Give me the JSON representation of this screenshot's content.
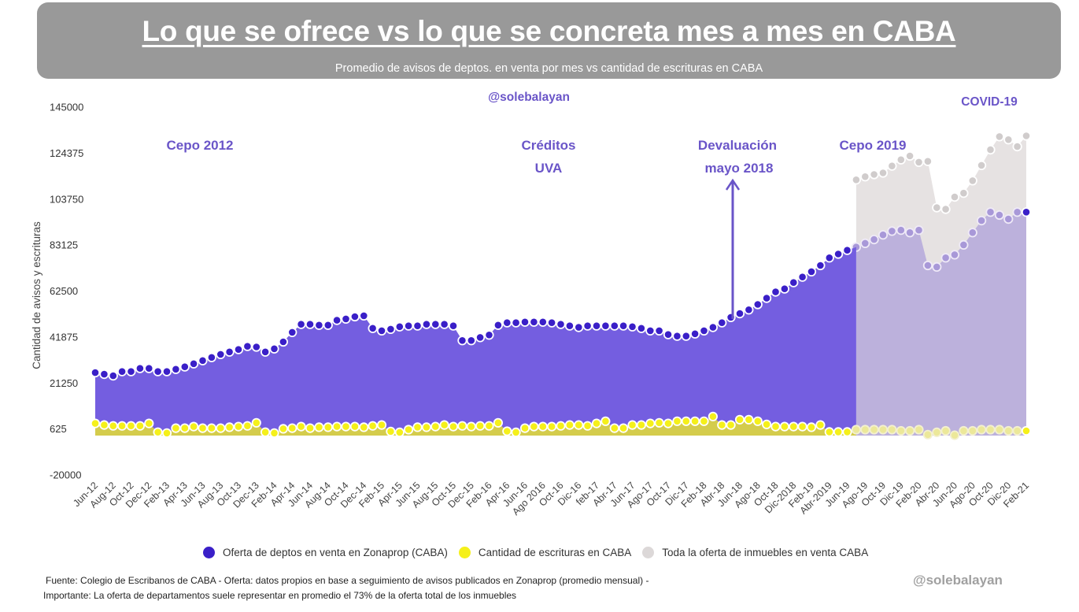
{
  "header": {
    "title": "Lo que se ofrece vs lo que se concreta mes a mes en CABA",
    "subtitle": "Promedio de avisos de deptos. en venta por mes vs cantidad de escrituras en CABA"
  },
  "watermark_top": "@solebalayan",
  "signature": "@solebalayan",
  "annotations": {
    "cepo2012": "Cepo 2012",
    "creditos_line1": "Créditos",
    "creditos_line2": "UVA",
    "devaluacion_line1": "Devaluación",
    "devaluacion_line2": "mayo 2018",
    "cepo2019": "Cepo 2019",
    "covid": "COVID-19"
  },
  "legend": [
    {
      "label": "Oferta de deptos en venta en Zonaprop (CABA)",
      "color": "#3a1fc8"
    },
    {
      "label": "Cantidad de escrituras en CABA",
      "color": "#f5f01a"
    },
    {
      "label": "Toda la oferta de inmuebles en venta CABA",
      "color": "#dcd8d8"
    }
  ],
  "footer": {
    "line1": "Fuente: Colegio de  Escribanos de CABA  -  Oferta: datos propios en base a seguimiento de avisos publicados en Zonaprop (promedio mensual) -",
    "line2": "Importante: La oferta de departamentos suele representar en promedio el 73% de la oferta total de los inmuebles"
  },
  "colors": {
    "header_bg": "#999999",
    "dept_fill": "#745ee0",
    "dept_dot": "#3a1fc8",
    "escr_fill": "#d4cc4c",
    "escr_dot": "#f5f01a",
    "total_fill": "#e6e2e2",
    "total_dot": "#d0cccc",
    "dept_overlay_fill": "#bcb1dc",
    "dept_overlay_dot": "#a898d8",
    "annotation": "#6a55c8"
  },
  "chart_data": {
    "type": "area",
    "title": "Lo que se ofrece vs lo que se concreta mes a mes en CABA",
    "subtitle": "Promedio de avisos de deptos. en venta por mes vs cantidad de escrituras en CABA",
    "xlabel": "",
    "ylabel": "Cantidad de avisos y escrituras",
    "ylim": [
      -20000,
      145000
    ],
    "yticks": [
      145000,
      124375,
      103750,
      83125,
      62500,
      41875,
      21250,
      625,
      -20000
    ],
    "ytick_labels": [
      "145000",
      "124375",
      "103750",
      "83125",
      "62500",
      "41875",
      "21250",
      "625",
      "-20000"
    ],
    "grid": false,
    "legend_position": "bottom",
    "x_tick_labels": [
      "Jun-12",
      "Aug-12",
      "Oct-12",
      "Dec-12",
      "Feb-13",
      "Apr-13",
      "Jun-13",
      "Aug-13",
      "Oct-13",
      "Dec-13",
      "Feb-14",
      "Apr-14",
      "Jun-14",
      "Aug-14",
      "Oct-14",
      "Dec-14",
      "Feb-15",
      "Apr-15",
      "Jun-15",
      "Aug-15",
      "Oct-15",
      "Dec-15",
      "Feb-16",
      "Apr-16",
      "Jun-16",
      "Ago 2016",
      "Oct-16",
      "Dic-16",
      "feb-17",
      "Abr-17",
      "Jun-17",
      "Ago-17",
      "Oct-17",
      "Dic-17",
      "Feb-18",
      "Abr-18",
      "Jun-18",
      "Ago-18",
      "Oct-18",
      "Dic-2018",
      "Feb-19",
      "Abr-2019",
      "Jun-19",
      "Ago-19",
      "Oct-19",
      "Dic-19",
      "Feb-20",
      "Abr-20",
      "Jun-20",
      "Ago-20",
      "Oct-20",
      "Dic-20",
      "Feb-21"
    ],
    "x_tick_every": 2,
    "n_points": 105,
    "series": [
      {
        "name": "Oferta de deptos en venta en Zonaprop (CABA)",
        "start_index": 0,
        "values": [
          25900,
          25200,
          24500,
          26400,
          26400,
          27800,
          27800,
          26400,
          26400,
          27400,
          28500,
          29900,
          31300,
          32700,
          34100,
          35200,
          36300,
          37700,
          37400,
          35200,
          36600,
          39700,
          44000,
          47600,
          47600,
          47200,
          47200,
          49400,
          50000,
          51000,
          51400,
          45800,
          44700,
          45400,
          46500,
          46900,
          46900,
          47600,
          47600,
          47600,
          46900,
          40300,
          40300,
          41700,
          42800,
          47200,
          48300,
          48300,
          48600,
          48600,
          48600,
          48300,
          47600,
          46900,
          46200,
          46900,
          46900,
          46900,
          46900,
          46900,
          46500,
          45800,
          44700,
          44700,
          43000,
          42300,
          42300,
          43300,
          44700,
          46200,
          48300,
          50700,
          52400,
          54100,
          56500,
          59300,
          62100,
          63500,
          66300,
          68800,
          71200,
          74000,
          77400,
          79100,
          80800,
          82200,
          83900,
          85600,
          87700,
          89400,
          89800,
          88700,
          89800,
          74000,
          73300,
          77400,
          78800,
          83200,
          88700,
          94100,
          97900,
          96600,
          94800,
          97900,
          97900
        ],
        "overlay_from_index": 85
      },
      {
        "name": "Cantidad de escrituras en CABA",
        "start_index": 0,
        "values": [
          3100,
          2400,
          2000,
          2000,
          2000,
          2000,
          3100,
          -800,
          -1200,
          1000,
          1000,
          1700,
          1000,
          1000,
          1000,
          1400,
          1700,
          2000,
          3400,
          -800,
          -1200,
          700,
          1000,
          1700,
          1000,
          1400,
          1400,
          1700,
          1700,
          1700,
          1400,
          2000,
          2400,
          -500,
          -900,
          300,
          1400,
          1400,
          1700,
          2400,
          1700,
          2000,
          1700,
          2000,
          2000,
          3400,
          -400,
          -900,
          1000,
          1700,
          1700,
          1700,
          2000,
          2400,
          2400,
          2000,
          3100,
          4100,
          1000,
          1000,
          2400,
          2400,
          3100,
          3400,
          3100,
          4100,
          4100,
          4100,
          4100,
          6200,
          2400,
          2400,
          4800,
          4800,
          4100,
          2700,
          1700,
          1700,
          1700,
          1700,
          1400,
          2400,
          -700,
          -700,
          -700,
          300,
          300,
          300,
          300,
          300,
          -200,
          -200,
          300,
          -1900,
          -900,
          -200,
          -2200,
          -200,
          -200,
          300,
          300,
          300,
          -200,
          -200,
          -200
        ],
        "overlay_from_index": 85
      },
      {
        "name": "Toda la oferta de inmuebles en venta CABA",
        "start_index": 85,
        "values": [
          112400,
          113800,
          114800,
          115500,
          118600,
          121400,
          123100,
          120300,
          120700,
          99900,
          99200,
          104700,
          106400,
          112000,
          118900,
          125900,
          131800,
          130400,
          127300,
          132100
        ]
      }
    ]
  }
}
